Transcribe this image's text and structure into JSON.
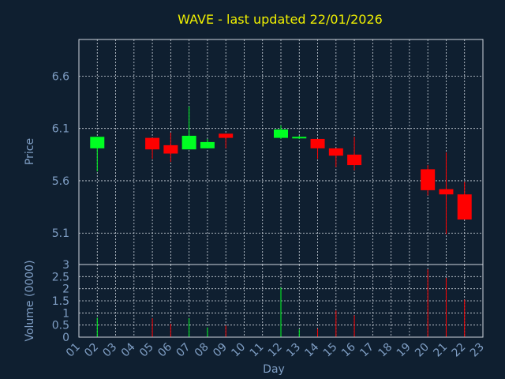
{
  "colors": {
    "background": "#0f1f30",
    "title": "#f0f000",
    "axis_text": "#7f9ec4",
    "up": "#00ff22",
    "down": "#ff0000",
    "grid": "#cfd6de"
  },
  "chart_data": [
    {
      "type": "candlestick",
      "title": "WAVE - last updated 22/01/2026",
      "ylabel": "Price",
      "ylim": [
        4.8,
        6.95
      ],
      "yticks": [
        "6.6",
        "6.1",
        "5.6",
        "5.1"
      ],
      "grid": true,
      "candles": [
        {
          "day": 2,
          "open": 5.91,
          "high": 6.02,
          "low": 5.69,
          "close": 6.02
        },
        {
          "day": 5,
          "open": 6.01,
          "high": 6.01,
          "low": 5.81,
          "close": 5.9
        },
        {
          "day": 6,
          "open": 5.94,
          "high": 6.06,
          "low": 5.78,
          "close": 5.86
        },
        {
          "day": 7,
          "open": 5.9,
          "high": 6.31,
          "low": 5.9,
          "close": 6.03
        },
        {
          "day": 8,
          "open": 5.91,
          "high": 6.0,
          "low": 5.91,
          "close": 5.97
        },
        {
          "day": 9,
          "open": 6.05,
          "high": 6.05,
          "low": 5.91,
          "close": 6.01
        },
        {
          "day": 12,
          "open": 6.01,
          "high": 6.13,
          "low": 6.0,
          "close": 6.09
        },
        {
          "day": 13,
          "open": 6.01,
          "high": 6.03,
          "low": 6.0,
          "close": 6.02
        },
        {
          "day": 14,
          "open": 6.0,
          "high": 6.0,
          "low": 5.81,
          "close": 5.91
        },
        {
          "day": 15,
          "open": 5.91,
          "high": 5.91,
          "low": 5.73,
          "close": 5.84
        },
        {
          "day": 16,
          "open": 5.85,
          "high": 6.02,
          "low": 5.7,
          "close": 5.75
        },
        {
          "day": 20,
          "open": 5.71,
          "high": 5.75,
          "low": 5.46,
          "close": 5.51
        },
        {
          "day": 21,
          "open": 5.52,
          "high": 5.87,
          "low": 5.09,
          "close": 5.47
        },
        {
          "day": 22,
          "open": 5.47,
          "high": 5.59,
          "low": 5.23,
          "close": 5.23
        }
      ]
    },
    {
      "type": "bar",
      "ylabel": "Volume (0000)",
      "xlabel": "Day",
      "ylim": [
        0,
        3
      ],
      "yticks": [
        "0",
        "0.5",
        "1",
        "1.5",
        "2",
        "2.5",
        "3"
      ],
      "categories": [
        "01",
        "02",
        "03",
        "04",
        "05",
        "06",
        "07",
        "08",
        "09",
        "10",
        "11",
        "12",
        "13",
        "14",
        "15",
        "16",
        "17",
        "18",
        "19",
        "20",
        "21",
        "22",
        "23"
      ],
      "volumes": [
        {
          "day": 2,
          "value": 0.8,
          "dir": "up"
        },
        {
          "day": 5,
          "value": 0.78,
          "dir": "down"
        },
        {
          "day": 6,
          "value": 0.55,
          "dir": "down"
        },
        {
          "day": 7,
          "value": 0.78,
          "dir": "up"
        },
        {
          "day": 8,
          "value": 0.4,
          "dir": "up"
        },
        {
          "day": 9,
          "value": 0.48,
          "dir": "down"
        },
        {
          "day": 12,
          "value": 2.05,
          "dir": "up"
        },
        {
          "day": 13,
          "value": 0.32,
          "dir": "up"
        },
        {
          "day": 14,
          "value": 0.35,
          "dir": "down"
        },
        {
          "day": 15,
          "value": 1.1,
          "dir": "down"
        },
        {
          "day": 16,
          "value": 0.9,
          "dir": "down"
        },
        {
          "day": 20,
          "value": 2.8,
          "dir": "down"
        },
        {
          "day": 21,
          "value": 2.45,
          "dir": "down"
        },
        {
          "day": 22,
          "value": 1.55,
          "dir": "down"
        }
      ]
    }
  ]
}
